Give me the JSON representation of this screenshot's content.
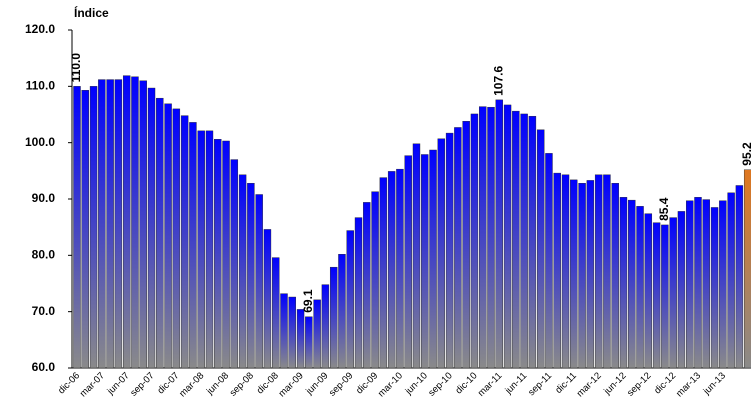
{
  "chart_data": {
    "type": "bar",
    "y_label": "Índice",
    "categories": [
      "dic-06",
      null,
      null,
      "mar-07",
      null,
      null,
      "jun-07",
      null,
      null,
      "sep-07",
      null,
      null,
      "dic-07",
      null,
      null,
      "mar-08",
      null,
      null,
      "jun-08",
      null,
      null,
      "sep-08",
      null,
      null,
      "dic-08",
      null,
      null,
      "mar-09",
      null,
      null,
      "jun-09",
      null,
      null,
      "sep-09",
      null,
      null,
      "dic-09",
      null,
      null,
      "mar-10",
      null,
      null,
      "jun-10",
      null,
      null,
      "sep-10",
      null,
      null,
      "dic-10",
      null,
      null,
      "mar-11",
      null,
      null,
      "jun-11",
      null,
      null,
      "sep-11",
      null,
      null,
      "dic-11",
      null,
      null,
      "mar-12",
      null,
      null,
      "jun-12",
      null,
      null,
      "sep-12",
      null,
      null,
      "dic-12",
      null,
      null,
      "mar-13",
      null,
      null,
      "jun-13",
      null,
      null,
      null
    ],
    "values": [
      110.0,
      109.3,
      110.0,
      111.2,
      111.2,
      111.2,
      111.9,
      111.7,
      111.0,
      109.7,
      107.9,
      106.9,
      106.0,
      104.8,
      103.6,
      102.1,
      102.1,
      100.6,
      100.3,
      97.0,
      94.3,
      92.8,
      90.8,
      84.6,
      79.6,
      73.2,
      72.6,
      70.4,
      69.1,
      72.1,
      74.8,
      77.9,
      80.2,
      84.4,
      86.7,
      89.4,
      91.3,
      93.8,
      94.9,
      95.3,
      97.7,
      99.8,
      97.9,
      98.7,
      100.7,
      101.7,
      102.7,
      103.8,
      105.1,
      106.4,
      106.3,
      107.6,
      106.7,
      105.6,
      105.1,
      104.7,
      102.3,
      98.1,
      94.6,
      94.3,
      93.4,
      92.8,
      93.3,
      94.3,
      94.3,
      92.8,
      90.3,
      89.8,
      88.7,
      87.4,
      85.8,
      85.4,
      86.7,
      87.8,
      89.7,
      90.3,
      89.9,
      88.5,
      89.7,
      91.1,
      92.4,
      95.2
    ],
    "value_labels": [
      "110.0",
      null,
      null,
      null,
      null,
      null,
      null,
      null,
      null,
      null,
      null,
      null,
      null,
      null,
      null,
      null,
      null,
      null,
      null,
      null,
      null,
      null,
      null,
      null,
      null,
      null,
      null,
      null,
      "69.1",
      null,
      null,
      null,
      null,
      null,
      null,
      null,
      null,
      null,
      null,
      null,
      null,
      null,
      null,
      null,
      null,
      null,
      null,
      null,
      null,
      null,
      null,
      "107.6",
      null,
      null,
      null,
      null,
      null,
      null,
      null,
      null,
      null,
      null,
      null,
      null,
      null,
      null,
      null,
      null,
      null,
      null,
      null,
      "85.4",
      null,
      null,
      null,
      null,
      null,
      null,
      null,
      null,
      null,
      "95.2"
    ],
    "color": "#0000ff",
    "last_color": "#e07820",
    "ylim": [
      60,
      120
    ],
    "yticks": [
      {
        "value": 60,
        "label": "60.0"
      },
      {
        "value": 70,
        "label": "70.0"
      },
      {
        "value": 80,
        "label": "80.0"
      },
      {
        "value": 90,
        "label": "90.0"
      },
      {
        "value": 100,
        "label": "100.0"
      },
      {
        "value": 110,
        "label": "110.0"
      },
      {
        "value": 120,
        "label": "120.0"
      }
    ]
  }
}
